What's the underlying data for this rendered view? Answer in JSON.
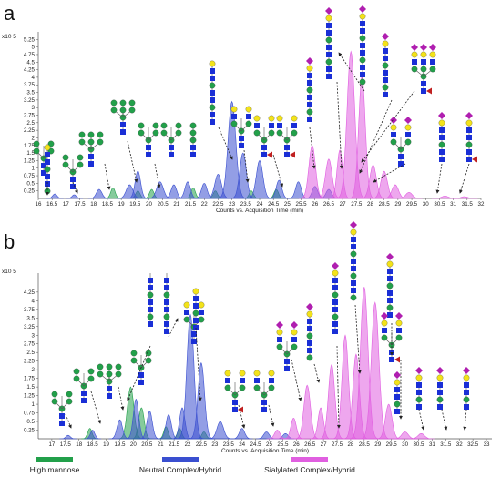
{
  "colors": {
    "high_mannose": "#22a04a",
    "neutral": "#3a4fd0",
    "sialylated": "#e05fe0",
    "axis": "#555555",
    "arrow": "#222222"
  },
  "legend": [
    {
      "label": "High mannose",
      "color_key": "high_mannose"
    },
    {
      "label": "Neutral Complex/Hybrid",
      "color_key": "neutral"
    },
    {
      "label": "Sialylated Complex/Hybrid",
      "color_key": "sialylated"
    }
  ],
  "chart_data": [
    {
      "panel": "a",
      "type": "area",
      "scale_label": "x10 5",
      "xlabel": "Counts vs. Acquisition Time (min)",
      "xlim": [
        16,
        32
      ],
      "ylim": [
        0,
        5.5
      ],
      "x_ticks": [
        "16",
        "16.5",
        "17",
        "17.5",
        "18",
        "18.5",
        "19",
        "19.5",
        "20",
        "20.5",
        "21",
        "21.5",
        "22",
        "22.5",
        "23",
        "23.5",
        "24",
        "24.5",
        "25",
        "25.5",
        "26",
        "26.5",
        "27",
        "27.5",
        "28",
        "28.5",
        "29",
        "29.5",
        "30",
        "30.5",
        "31",
        "31.5",
        "32"
      ],
      "y_ticks": [
        "0.25",
        "0.5",
        "0.75",
        "1",
        "1.25",
        "1.5",
        "1.75",
        "2",
        "2.25",
        "2.5",
        "2.75",
        "3",
        "3.25",
        "3.5",
        "3.75",
        "4",
        "4.25",
        "4.5",
        "4.75",
        "5",
        "5.25"
      ],
      "series": [
        {
          "color_key": "high_mannose",
          "peaks": [
            [
              18.7,
              0.35,
              0.08
            ],
            [
              19.6,
              0.25,
              0.08
            ],
            [
              20.1,
              0.3,
              0.08
            ],
            [
              21.6,
              0.35,
              0.08
            ],
            [
              22.4,
              0.25,
              0.08
            ],
            [
              23.7,
              0.25,
              0.08
            ],
            [
              24.6,
              0.3,
              0.08
            ]
          ]
        },
        {
          "color_key": "neutral",
          "peaks": [
            [
              16.6,
              0.15,
              0.08
            ],
            [
              17.3,
              0.12,
              0.08
            ],
            [
              18.2,
              0.3,
              0.1
            ],
            [
              19.3,
              0.45,
              0.12
            ],
            [
              19.6,
              0.9,
              0.1
            ],
            [
              20.4,
              0.55,
              0.12
            ],
            [
              20.9,
              0.45,
              0.1
            ],
            [
              21.4,
              0.55,
              0.1
            ],
            [
              22.0,
              0.5,
              0.1
            ],
            [
              22.5,
              0.8,
              0.12
            ],
            [
              23.0,
              3.2,
              0.14
            ],
            [
              23.4,
              1.5,
              0.12
            ],
            [
              24.0,
              1.25,
              0.12
            ],
            [
              24.7,
              0.6,
              0.1
            ],
            [
              25.4,
              0.55,
              0.1
            ],
            [
              26.0,
              0.4,
              0.1
            ],
            [
              26.5,
              0.3,
              0.1
            ]
          ]
        },
        {
          "color_key": "sialylated",
          "peaks": [
            [
              25.9,
              1.75,
              0.12
            ],
            [
              26.5,
              1.3,
              0.12
            ],
            [
              26.9,
              1.6,
              0.1
            ],
            [
              27.3,
              4.85,
              0.14
            ],
            [
              27.7,
              4.05,
              0.12
            ],
            [
              28.1,
              1.1,
              0.12
            ],
            [
              28.5,
              0.9,
              0.12
            ],
            [
              28.9,
              0.45,
              0.12
            ],
            [
              29.4,
              0.2,
              0.12
            ],
            [
              30.7,
              0.08,
              0.12
            ],
            [
              31.4,
              0.06,
              0.12
            ]
          ]
        }
      ]
    },
    {
      "panel": "b",
      "type": "area",
      "scale_label": "x10 5",
      "xlabel": "Counts vs. Acquisition Time (min)",
      "xlim": [
        16.5,
        33.2
      ],
      "ylim": [
        0,
        4.8
      ],
      "x_ticks": [
        "17",
        "17.5",
        "18",
        "18.5",
        "19",
        "19.5",
        "20",
        "20.5",
        "21",
        "21.5",
        "22",
        "22.5",
        "23",
        "23.5",
        "24",
        "24.5",
        "25",
        "25.5",
        "26",
        "26.5",
        "27",
        "27.5",
        "28",
        "28.5",
        "29",
        "29.5",
        "30",
        "30.5",
        "31",
        "31.5",
        "32",
        "32.5",
        "33"
      ],
      "y_ticks": [
        "0.25",
        "0.5",
        "0.75",
        "1",
        "1.25",
        "1.5",
        "1.75",
        "2",
        "2.25",
        "2.5",
        "2.75",
        "3",
        "3.25",
        "3.5",
        "3.75",
        "4",
        "4.25"
      ],
      "series": [
        {
          "color_key": "high_mannose",
          "peaks": [
            [
              18.4,
              0.3,
              0.08
            ],
            [
              19.9,
              1.5,
              0.12
            ],
            [
              20.3,
              0.9,
              0.1
            ],
            [
              21.2,
              0.35,
              0.08
            ],
            [
              21.7,
              0.3,
              0.08
            ],
            [
              22.6,
              0.2,
              0.08
            ]
          ]
        },
        {
          "color_key": "neutral",
          "peaks": [
            [
              17.6,
              0.1,
              0.08
            ],
            [
              18.5,
              0.25,
              0.08
            ],
            [
              19.5,
              0.55,
              0.1
            ],
            [
              20.1,
              1.15,
              0.1
            ],
            [
              20.6,
              0.8,
              0.1
            ],
            [
              21.3,
              0.7,
              0.1
            ],
            [
              21.8,
              0.9,
              0.1
            ],
            [
              22.1,
              3.6,
              0.13
            ],
            [
              22.5,
              2.2,
              0.12
            ],
            [
              23.2,
              0.5,
              0.12
            ],
            [
              24.0,
              0.3,
              0.1
            ],
            [
              24.9,
              0.2,
              0.1
            ],
            [
              25.6,
              0.15,
              0.1
            ]
          ]
        },
        {
          "color_key": "sialylated",
          "peaks": [
            [
              25.3,
              0.25,
              0.1
            ],
            [
              25.9,
              0.6,
              0.1
            ],
            [
              26.4,
              1.55,
              0.12
            ],
            [
              26.9,
              0.9,
              0.1
            ],
            [
              27.3,
              2.15,
              0.12
            ],
            [
              27.8,
              3.0,
              0.12
            ],
            [
              28.2,
              2.45,
              0.12
            ],
            [
              28.5,
              4.4,
              0.14
            ],
            [
              28.9,
              3.95,
              0.14
            ],
            [
              29.4,
              1.0,
              0.12
            ],
            [
              30.0,
              0.2,
              0.12
            ],
            [
              30.6,
              0.15,
              0.12
            ]
          ]
        }
      ]
    }
  ]
}
